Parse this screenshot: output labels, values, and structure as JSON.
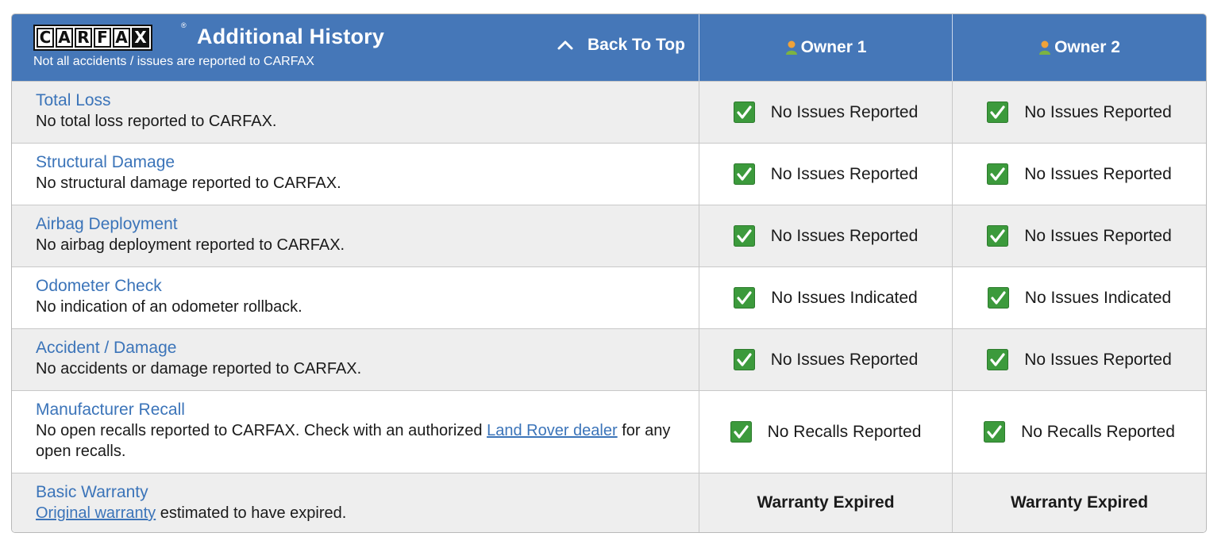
{
  "header": {
    "logo_letters": [
      "C",
      "A",
      "R",
      "F",
      "A",
      "X"
    ],
    "logo_registered": "®",
    "title": "Additional History",
    "subtitle": "Not all accidents / issues are reported to CARFAX",
    "back_to_top": "Back To Top",
    "owners": [
      "Owner 1",
      "Owner 2"
    ]
  },
  "colors": {
    "header_bg": "#4577b8",
    "link": "#3b74b9",
    "check_green": "#3c9a3c",
    "row_alt": "#eeeeee"
  },
  "icons": {
    "owner": "person-icon",
    "status": "green-check-icon",
    "back": "chevron-up-icon"
  },
  "rows": [
    {
      "title": "Total Loss",
      "desc": "No total loss reported to CARFAX.",
      "owner1": "No Issues Reported",
      "owner2": "No Issues Reported"
    },
    {
      "title": "Structural Damage",
      "desc": "No structural damage reported to CARFAX.",
      "owner1": "No Issues Reported",
      "owner2": "No Issues Reported"
    },
    {
      "title": "Airbag Deployment",
      "desc": "No airbag deployment reported to CARFAX.",
      "owner1": "No Issues Reported",
      "owner2": "No Issues Reported"
    },
    {
      "title": "Odometer Check",
      "desc": "No indication of an odometer rollback.",
      "owner1": "No Issues Indicated",
      "owner2": "No Issues Indicated"
    },
    {
      "title": "Accident / Damage",
      "desc": "No accidents or damage reported to CARFAX.",
      "owner1": "No Issues Reported",
      "owner2": "No Issues Reported"
    },
    {
      "title": "Manufacturer Recall",
      "desc_before": "No open recalls reported to CARFAX. Check with an authorized ",
      "desc_link": "Land Rover dealer",
      "desc_after": " for any open recalls.",
      "owner1": "No Recalls Reported",
      "owner2": "No Recalls Reported"
    },
    {
      "title": "Basic Warranty",
      "desc_link": "Original warranty",
      "desc_after": " estimated to have expired.",
      "owner1": "Warranty Expired",
      "owner2": "Warranty Expired"
    }
  ]
}
